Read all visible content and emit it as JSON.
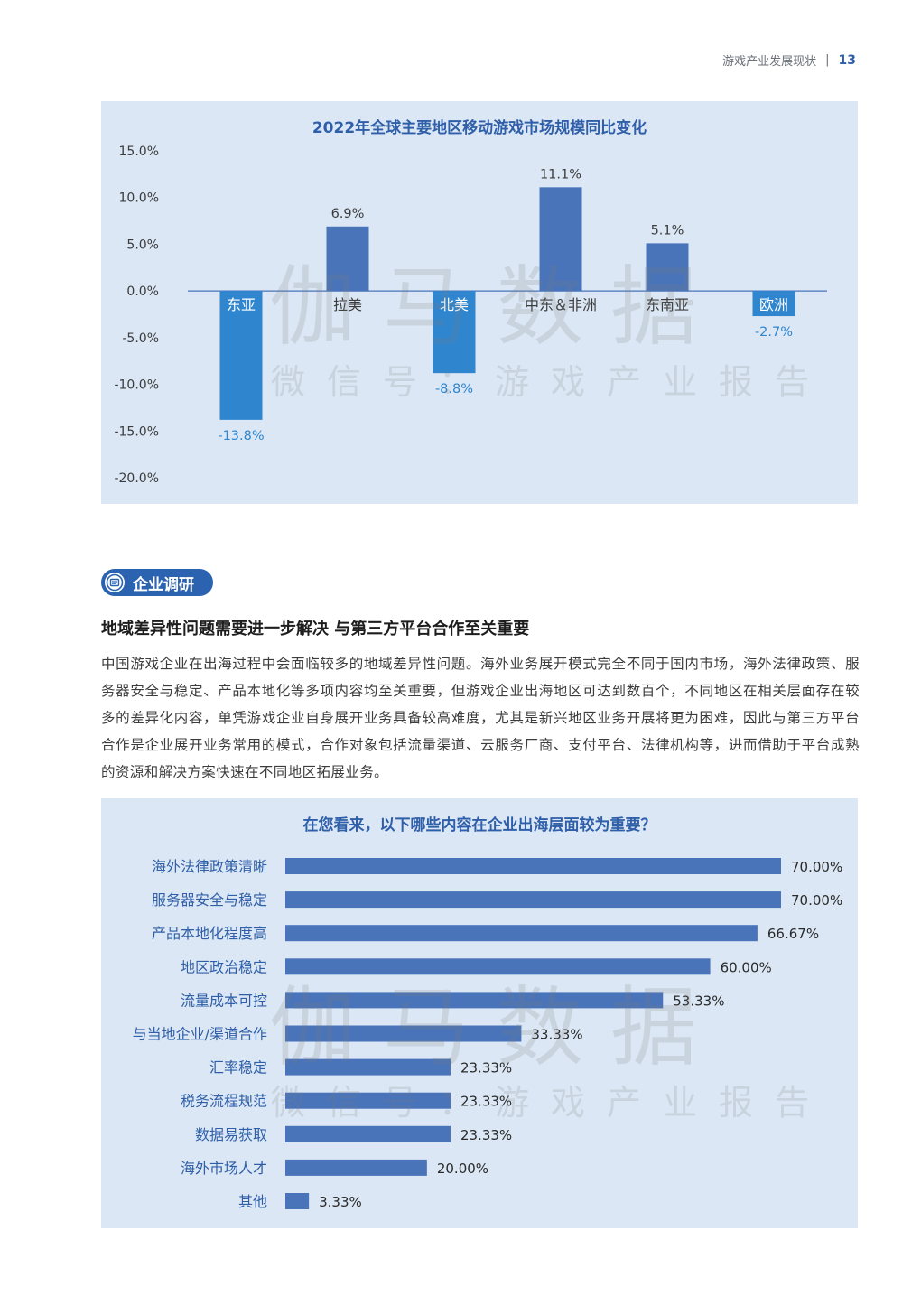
{
  "header": {
    "section": "游戏产业发展现状",
    "page": "13"
  },
  "watermark": {
    "main": "伽马数据",
    "sub": "微信号：游戏产业报告"
  },
  "chart_data": [
    {
      "type": "bar",
      "title": "2022年全球主要地区移动游戏市场规模同比变化",
      "categories": [
        "东亚",
        "拉美",
        "北美",
        "中东＆非洲",
        "东南亚",
        "欧洲"
      ],
      "values": [
        -13.8,
        6.9,
        -8.8,
        11.1,
        5.1,
        -2.7
      ],
      "data_labels": [
        "-13.8%",
        "6.9%",
        "-8.8%",
        "11.1%",
        "5.1%",
        "-2.7%"
      ],
      "y_ticks": [
        "15.0%",
        "10.0%",
        "5.0%",
        "0.0%",
        "-5.0%",
        "-10.0%",
        "-15.0%",
        "-20.0%"
      ],
      "ylim": [
        -20,
        15
      ],
      "grid": false,
      "colors": {
        "positive": "#4a74ba",
        "negative": "#2f86cf",
        "zero_line": "#4a74ba",
        "pos_label": "#3c3c3c",
        "neg_label": "#2f86cf"
      }
    },
    {
      "type": "bar",
      "orientation": "horizontal",
      "title": "在您看来，以下哪些内容在企业出海层面较为重要？",
      "categories": [
        "海外法律政策清晰",
        "服务器安全与稳定",
        "产品本地化程度高",
        "地区政治稳定",
        "流量成本可控",
        "与当地企业/渠道合作",
        "汇率稳定",
        "税务流程规范",
        "数据易获取",
        "海外市场人才",
        "其他"
      ],
      "values": [
        70.0,
        70.0,
        66.67,
        60.0,
        53.33,
        33.33,
        23.33,
        23.33,
        23.33,
        20.0,
        3.33
      ],
      "data_labels": [
        "70.00%",
        "70.00%",
        "66.67%",
        "60.00%",
        "53.33%",
        "33.33%",
        "23.33%",
        "23.33%",
        "23.33%",
        "20.00%",
        "3.33%"
      ],
      "xlim": [
        0,
        70
      ],
      "colors": {
        "bar": "#4a74ba",
        "category": "#2f5fa8"
      }
    }
  ],
  "section": {
    "badge": "企业调研",
    "title": "地域差异性问题需要进一步解决  与第三方平台合作至关重要",
    "body": "中国游戏企业在出海过程中会面临较多的地域差异性问题。海外业务展开模式完全不同于国内市场，海外法律政策、服务器安全与稳定、产品本地化等多项内容均至关重要，但游戏企业出海地区可达到数百个，不同地区在相关层面存在较多的差异化内容，单凭游戏企业自身展开业务具备较高难度，尤其是新兴地区业务开展将更为困难，因此与第三方平台合作是企业展开业务常用的模式，合作对象包括流量渠道、云服务厂商、支付平台、法律机构等，进而借助于平台成熟的资源和解决方案快速在不同地区拓展业务。"
  }
}
